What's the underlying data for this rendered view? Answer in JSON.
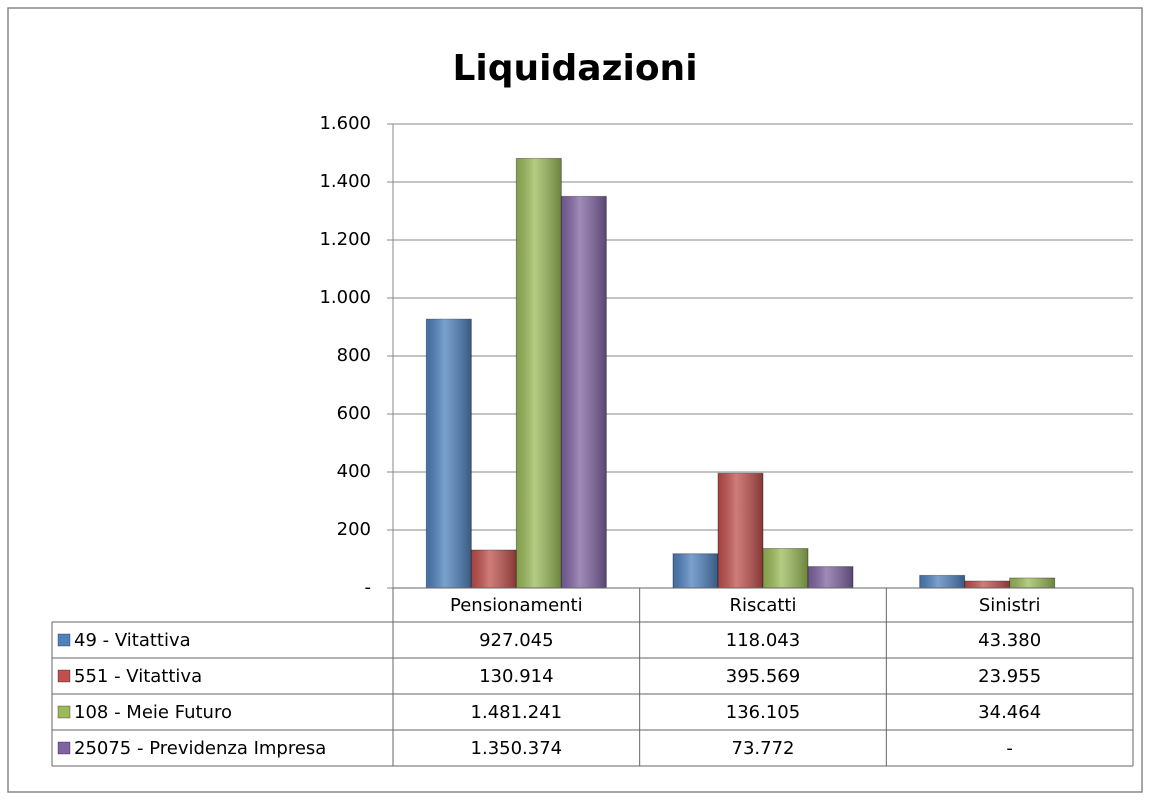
{
  "chart_data": {
    "type": "bar",
    "title": "Liquidazioni",
    "categories": [
      "Pensionamenti",
      "Riscatti",
      "Sinistri"
    ],
    "series": [
      {
        "name": "49 - Vitattiva",
        "color": "#4f81bd",
        "values": [
          927.045,
          118.043,
          43.38
        ],
        "value_labels": [
          "927.045",
          "118.043",
          "43.380"
        ]
      },
      {
        "name": "551 - Vitattiva",
        "color": "#c0504d",
        "values": [
          130.914,
          395.569,
          23.955
        ],
        "value_labels": [
          "130.914",
          "395.569",
          "23.955"
        ]
      },
      {
        "name": "108 - Meie Futuro",
        "color": "#9bbb59",
        "values": [
          1481.241,
          136.105,
          34.464
        ],
        "value_labels": [
          "1.481.241",
          "136.105",
          "34.464"
        ]
      },
      {
        "name": "25075 - Previdenza Impresa",
        "color": "#8064a2",
        "values": [
          1350.374,
          73.772,
          0
        ],
        "value_labels": [
          "1.350.374",
          "73.772",
          "-"
        ]
      }
    ],
    "ylim": [
      0,
      1600
    ],
    "yticks": [
      {
        "value": 0,
        "label": "-"
      },
      200,
      400,
      600,
      800,
      {
        "value": 1000,
        "label": "1.000"
      },
      {
        "value": 1200,
        "label": "1.200"
      },
      {
        "value": 1400,
        "label": "1.400"
      },
      {
        "value": 1600,
        "label": "1.600"
      }
    ],
    "grid": true
  }
}
